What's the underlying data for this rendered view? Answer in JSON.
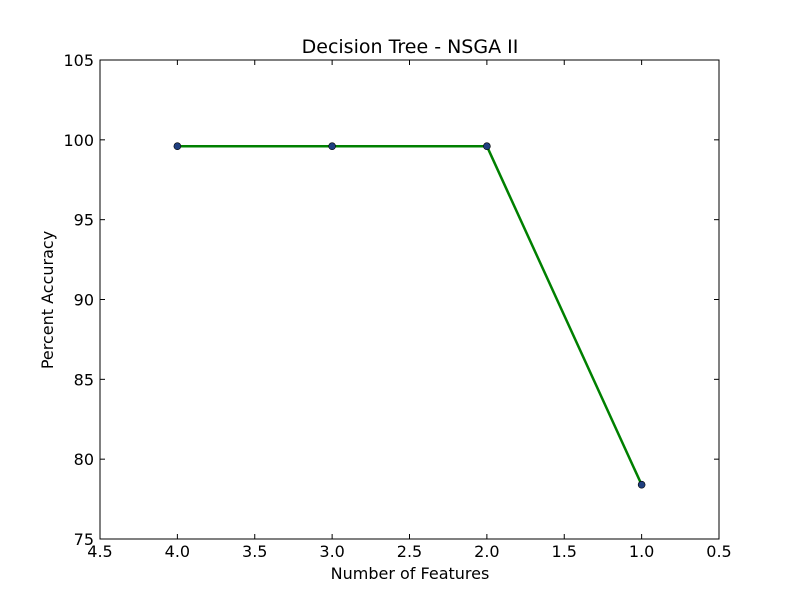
{
  "chart_data": {
    "type": "line",
    "title": "Decision Tree - NSGA II",
    "xlabel": "Number of Features",
    "ylabel": "Percent Accuracy",
    "x_reversed": true,
    "xlim": [
      4.5,
      0.5
    ],
    "ylim": [
      75,
      105
    ],
    "xticks": [
      "4.5",
      "4.0",
      "3.5",
      "3.0",
      "2.5",
      "2.0",
      "1.5",
      "1.0",
      "0.5"
    ],
    "yticks": [
      "75",
      "80",
      "85",
      "90",
      "95",
      "100",
      "105"
    ],
    "grid": false,
    "line_color": "#008000",
    "marker_color": "#1f3f7f",
    "series": [
      {
        "x": [
          4.0,
          3.0,
          2.0,
          1.0
        ],
        "y": [
          99.6,
          99.6,
          99.6,
          78.4
        ]
      }
    ]
  }
}
